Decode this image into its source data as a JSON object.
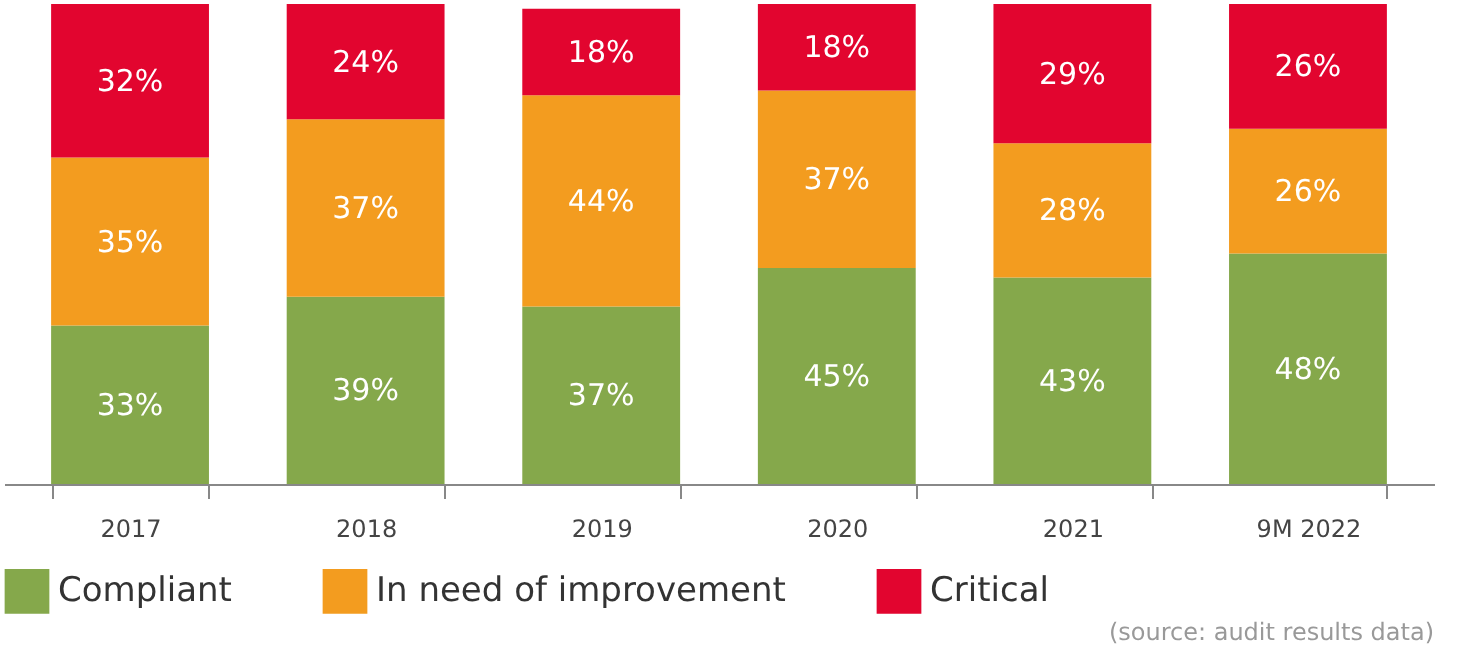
{
  "chart_data": {
    "type": "bar",
    "stacked": true,
    "tick_labels": "x",
    "legend": "bottom",
    "categories": [
      "2017",
      "2018",
      "2019",
      "2020",
      "2021",
      "9M 2022"
    ],
    "series": [
      {
        "name": "Compliant",
        "color": "#85a84b",
        "values": [
          33,
          39,
          37,
          45,
          43,
          48
        ],
        "value_labels": [
          "33%",
          "39%",
          "37%",
          "45%",
          "43%",
          "48%"
        ]
      },
      {
        "name": "In need of improvement",
        "color": "#f39c1f",
        "values": [
          35,
          37,
          44,
          37,
          28,
          26
        ],
        "value_labels": [
          "35%",
          "37%",
          "44%",
          "37%",
          "28%",
          "26%"
        ]
      },
      {
        "name": "Critical",
        "color": "#e2052f",
        "values": [
          32,
          24,
          18,
          18,
          29,
          26
        ],
        "value_labels": [
          "32%",
          "24%",
          "18%",
          "18%",
          "29%",
          "26%"
        ]
      }
    ],
    "annotations": [
      "(source: audit results data)"
    ]
  }
}
